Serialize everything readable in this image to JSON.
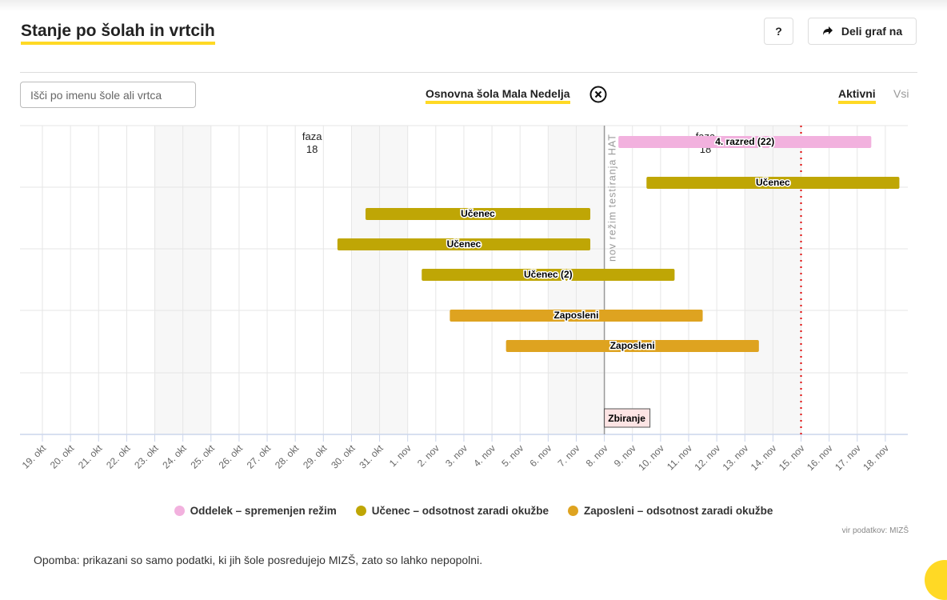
{
  "header": {
    "title": "Stanje po šolah in vrtcih",
    "help_label": "?",
    "share_label": "Deli graf na"
  },
  "filters": {
    "search_placeholder": "Išči po imenu šole ali vrtca",
    "selected_school": "Osnovna šola Mala Nedelja",
    "active_label": "Aktivni",
    "all_label": "Vsi"
  },
  "chart_data": {
    "type": "gantt",
    "x_ticks": [
      "19. okt",
      "20. okt",
      "21. okt",
      "22. okt",
      "23. okt",
      "24. okt",
      "25. okt",
      "26. okt",
      "27. okt",
      "28. okt",
      "29. okt",
      "30. okt",
      "31. okt",
      "1. nov",
      "2. nov",
      "3. nov",
      "4. nov",
      "5. nov",
      "6. nov",
      "7. nov",
      "8. nov",
      "9. nov",
      "10. nov",
      "11. nov",
      "12. nov",
      "13. nov",
      "14. nov",
      "15. nov",
      "16. nov",
      "17. nov",
      "18. nov"
    ],
    "shaded_ranges": [
      [
        "23. okt",
        "25. okt"
      ],
      [
        "30. okt",
        "1. nov"
      ],
      [
        "6. nov",
        "8. nov"
      ],
      [
        "13. nov",
        "15. nov"
      ]
    ],
    "bars": [
      {
        "label": "4. razred (22)",
        "type": "Oddelek",
        "start": "9. nov",
        "end": "17. nov"
      },
      {
        "label": "Učenec",
        "type": "Učenec",
        "start": "10. nov",
        "end": "18. nov"
      },
      {
        "label": "Učenec",
        "type": "Učenec",
        "start": "31. okt",
        "end": "7. nov"
      },
      {
        "label": "Učenec",
        "type": "Učenec",
        "start": "30. okt",
        "end": "7. nov"
      },
      {
        "label": "Učenec (2)",
        "type": "Učenec",
        "start": "2. nov",
        "end": "10. nov"
      },
      {
        "label": "Zaposleni",
        "type": "Zaposleni",
        "start": "3. nov",
        "end": "11. nov"
      },
      {
        "label": "Zaposleni",
        "type": "Zaposleni",
        "start": "5. nov",
        "end": "13. nov"
      }
    ],
    "annotations": [
      {
        "text": [
          "faza",
          "18"
        ],
        "date": "28. okt"
      },
      {
        "text": [
          "faza",
          "18"
        ],
        "date": "11. nov"
      },
      {
        "text": "nov režim testiranja HAT",
        "date": "8. nov",
        "kind": "vertical-line"
      },
      {
        "text": "Zbiranje",
        "date": "8. nov",
        "kind": "flag"
      }
    ],
    "today_marker": "15. nov",
    "colors": {
      "Oddelek": "#f2b1de",
      "Učenec": "#bfa605",
      "Zaposleni": "#dea320",
      "today": "#e00000"
    },
    "legend": [
      {
        "label": "Oddelek – spremenjen režim",
        "color": "#f2b1de"
      },
      {
        "label": "Učenec – odsotnost zaradi okužbe",
        "color": "#bfa605"
      },
      {
        "label": "Zaposleni – odsotnost zaradi okužbe",
        "color": "#dea320"
      }
    ],
    "legend_position": "bottom",
    "grid": true
  },
  "footer": {
    "source": "vir podatkov: MIZŠ",
    "note": "Opomba: prikazani so samo podatki, ki jih šole posredujejo MIZŠ, zato so lahko nepopolni."
  }
}
